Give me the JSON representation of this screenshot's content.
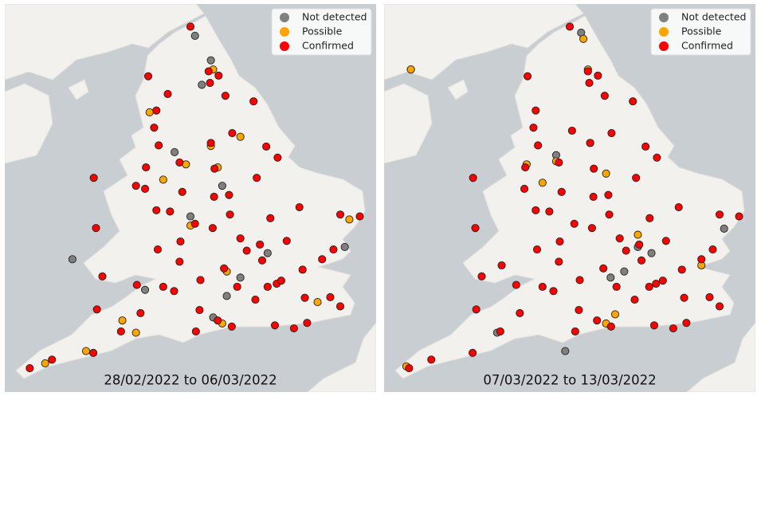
{
  "chart_data": [
    {
      "type": "scatter",
      "caption": "28/02/2022 to 06/03/2022",
      "legend": "upper right",
      "xlim": [
        -6.09,
        2.09
      ],
      "ylim": [
        49.73,
        56.07
      ],
      "series": [
        {
          "name": "Not detected",
          "color": "#808080",
          "x": [
            -1.55,
            -1.75,
            -2.35,
            -1.3,
            -0.3,
            -1.2,
            -3.0,
            -2.0,
            -1.5,
            -0.9,
            -4.6,
            1.4,
            -1.9
          ],
          "y": [
            55.15,
            54.75,
            53.65,
            53.1,
            52.0,
            51.3,
            51.4,
            52.6,
            50.95,
            51.6,
            51.9,
            52.1,
            55.55
          ]
        },
        {
          "name": "Possible",
          "color": "#ffa500",
          "x": [
            -2.1,
            -1.55,
            -1.4,
            -4.3,
            -3.2,
            -2.9,
            1.5,
            0.8,
            -2.6,
            -1.2,
            -2.0,
            -5.2,
            -1.5,
            -3.5,
            -1.3,
            -0.9
          ],
          "y": [
            53.45,
            53.75,
            53.4,
            50.4,
            50.7,
            54.3,
            52.55,
            51.2,
            53.2,
            51.7,
            52.45,
            50.2,
            55.0,
            50.9,
            50.85,
            53.9
          ]
        },
        {
          "name": "Confirmed",
          "color": "#ff0000",
          "x": [
            -0.1,
            0.0,
            -0.3,
            -1.9,
            -2.24,
            -2.98,
            -1.55,
            -1.6,
            -2.6,
            -1.47,
            -1.15,
            -1.13,
            -3.18,
            -3.94,
            -4.14,
            -3.53,
            -1.4,
            -0.14,
            1.3,
            0.12,
            -1.26,
            -0.33,
            -1.08,
            -2.93,
            -2.8,
            -2.7,
            -2.18,
            -2.75,
            -2.72,
            -2.24,
            -0.97,
            -0.9,
            -0.24,
            1.15,
            0.9,
            1.08,
            1.3,
            -0.54,
            -0.08,
            -1.23,
            -1.38,
            -0.61,
            -2.75,
            -1.88,
            -5.05,
            -5.54,
            -4.06,
            -3.1,
            -4.08,
            -4.13,
            -3.0,
            -0.76,
            -0.42,
            0.47,
            0.52,
            -0.57,
            -1.78,
            -2.36,
            -1.51,
            -1.48,
            -0.47,
            0.4,
            1.73,
            -1.57,
            -2.0,
            -1.09,
            0.57,
            0.28,
            -1.8,
            -2.22,
            -2.45,
            -3.2,
            -2.5
          ],
          "y": [
            51.5,
            51.55,
            51.45,
            52.48,
            53.48,
            53.4,
            53.8,
            54.97,
            51.45,
            53.38,
            52.95,
            52.63,
            51.48,
            51.62,
            50.37,
            50.72,
            50.9,
            50.82,
            52.63,
            52.2,
            51.75,
            53.74,
            53.96,
            54.89,
            54.05,
            53.76,
            53.0,
            52.7,
            52.06,
            51.86,
            51.45,
            52.24,
            52.57,
            52.06,
            51.9,
            51.28,
            51.13,
            53.23,
            53.56,
            54.57,
            54.9,
            54.48,
            54.33,
            50.72,
            50.26,
            50.12,
            51.08,
            51.02,
            52.41,
            53.23,
            53.05,
            52.04,
            51.88,
            51.73,
            51.27,
            51.24,
            51.56,
            51.38,
            52.41,
            52.92,
            52.14,
            52.75,
            52.6,
            54.78,
            55.7,
            50.8,
            50.86,
            50.77,
            51.07,
            52.19,
            52.68,
            53.1,
            54.6
          ]
        }
      ]
    },
    {
      "type": "scatter",
      "caption": "07/03/2022 to 13/03/2022",
      "legend": "upper right",
      "xlim": [
        -6.09,
        2.09
      ],
      "ylim": [
        49.73,
        56.07
      ],
      "series": [
        {
          "name": "Not detected",
          "color": "#808080",
          "x": [
            -1.75,
            -5.5,
            -2.3,
            -0.5,
            1.4,
            -0.2,
            -1.1,
            -3.6,
            -2.1,
            -0.8
          ],
          "y": [
            55.6,
            55.0,
            53.6,
            52.1,
            52.4,
            52.0,
            51.6,
            50.7,
            50.4,
            51.7
          ]
        },
        {
          "name": "Possible",
          "color": "#ffa500",
          "x": [
            -1.7,
            -5.5,
            -2.3,
            -1.55,
            -2.95,
            -1.6,
            -0.5,
            0.9,
            -1.2,
            -5.6,
            -1.2,
            -1.0,
            -2.6
          ],
          "y": [
            55.5,
            55.0,
            53.5,
            53.8,
            53.45,
            55.0,
            52.3,
            51.8,
            53.3,
            50.15,
            50.85,
            51.0,
            53.15
          ]
        },
        {
          "name": "Confirmed",
          "color": "#ff0000",
          "x": [
            -0.1,
            0.05,
            -0.25,
            -1.9,
            -2.24,
            -2.98,
            -1.55,
            -1.6,
            -2.6,
            -1.47,
            -1.15,
            -1.13,
            -3.18,
            -3.94,
            -4.14,
            -3.53,
            -1.4,
            -0.14,
            1.3,
            0.12,
            -1.26,
            -0.33,
            -1.08,
            -2.93,
            -2.8,
            -2.7,
            -2.18,
            -2.75,
            -2.72,
            -2.24,
            -0.97,
            -0.9,
            -0.24,
            1.15,
            0.9,
            1.08,
            1.3,
            -0.54,
            -0.08,
            -1.23,
            -1.38,
            -0.61,
            -2.75,
            -1.88,
            -5.05,
            -5.54,
            -4.06,
            -3.1,
            -4.08,
            -4.13,
            -3.0,
            -0.76,
            -0.42,
            0.47,
            0.52,
            -0.57,
            -1.78,
            -2.36,
            -1.51,
            -1.48,
            -0.47,
            0.4,
            1.73,
            -1.57,
            -2.0,
            -1.09,
            0.57,
            0.28,
            -1.8,
            -2.22,
            -2.45,
            -1.95,
            -3.5
          ],
          "y": [
            51.5,
            51.55,
            51.45,
            52.48,
            53.48,
            53.4,
            53.8,
            54.97,
            51.45,
            53.38,
            52.95,
            52.63,
            51.48,
            51.62,
            50.37,
            50.72,
            50.9,
            50.82,
            52.63,
            52.2,
            51.75,
            53.74,
            53.96,
            54.89,
            54.05,
            53.76,
            53.0,
            52.7,
            52.06,
            51.86,
            51.45,
            52.24,
            52.57,
            52.06,
            51.9,
            51.28,
            51.13,
            53.23,
            53.56,
            54.57,
            54.9,
            54.48,
            54.33,
            50.72,
            50.26,
            50.12,
            51.08,
            51.02,
            52.41,
            53.23,
            53.05,
            52.04,
            51.88,
            51.73,
            51.27,
            51.24,
            51.56,
            51.38,
            52.41,
            52.92,
            52.14,
            52.75,
            52.6,
            54.78,
            55.7,
            50.8,
            50.86,
            50.77,
            51.07,
            52.19,
            52.68,
            54.0,
            51.8
          ]
        }
      ]
    }
  ]
}
